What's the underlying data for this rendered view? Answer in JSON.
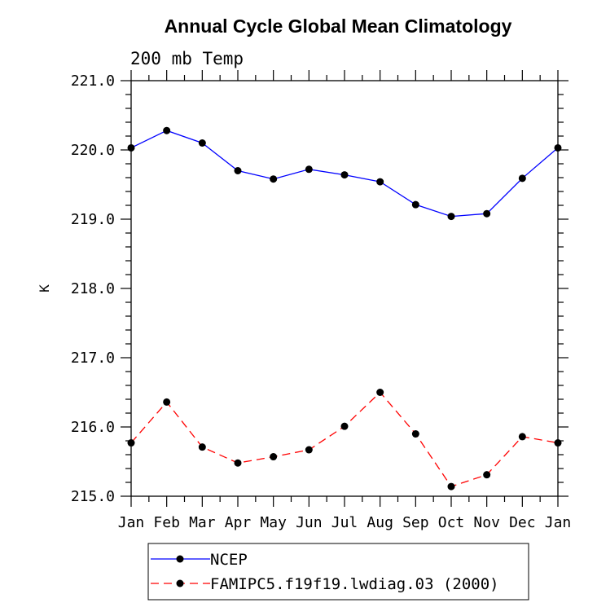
{
  "chart_data": {
    "type": "line",
    "title": "Annual Cycle Global Mean Climatology",
    "subtitle": "200 mb Temp",
    "ylabel": "K",
    "xlabel": "",
    "categories": [
      "Jan",
      "Feb",
      "Mar",
      "Apr",
      "May",
      "Jun",
      "Jul",
      "Aug",
      "Sep",
      "Oct",
      "Nov",
      "Dec",
      "Jan"
    ],
    "ylim": [
      215.0,
      221.0
    ],
    "yticks": [
      "215.0",
      "216.0",
      "217.0",
      "218.0",
      "219.0",
      "220.0",
      "221.0"
    ],
    "grid": false,
    "legend_position": "bottom",
    "series": [
      {
        "name": "NCEP",
        "color": "#0000ff",
        "dash": "solid",
        "values": [
          220.03,
          220.28,
          220.1,
          219.7,
          219.58,
          219.72,
          219.64,
          219.54,
          219.21,
          219.04,
          219.08,
          219.59,
          220.03
        ]
      },
      {
        "name": "FAMIPC5.f19f19.lwdiag.03 (2000)",
        "color": "#ff0000",
        "dash": "dashed",
        "values": [
          215.77,
          216.36,
          215.71,
          215.48,
          215.57,
          215.67,
          216.01,
          216.5,
          215.9,
          215.14,
          215.31,
          215.86,
          215.77
        ]
      }
    ]
  }
}
